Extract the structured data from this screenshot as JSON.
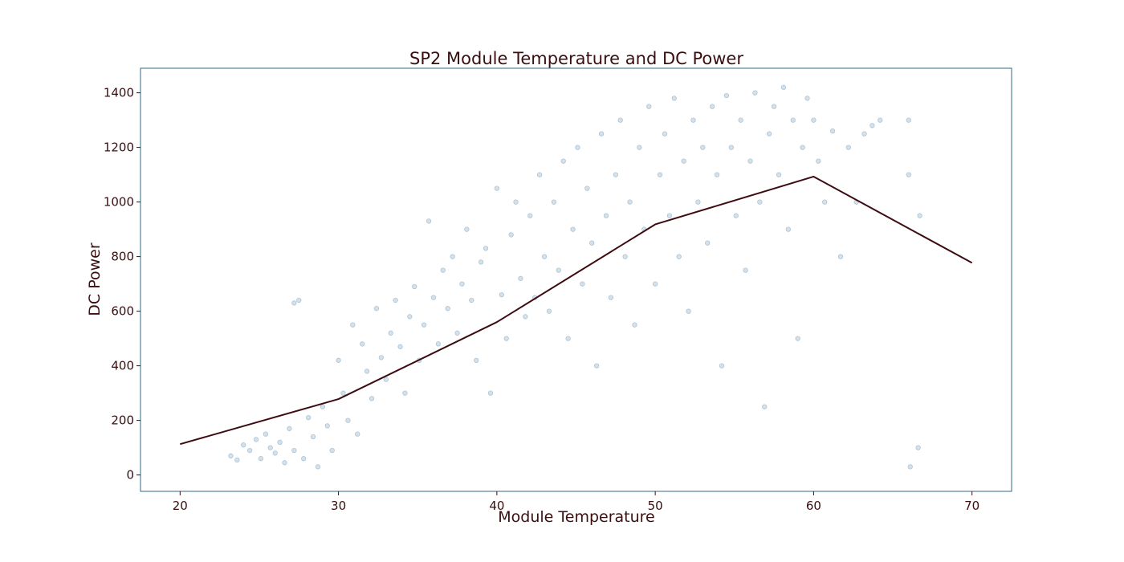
{
  "chart_data": {
    "type": "scatter",
    "title": "SP2 Module Temperature and DC Power",
    "xlabel": "Module Temperature",
    "ylabel": "DC Power",
    "xlim": [
      17.5,
      72.5
    ],
    "ylim": [
      -60,
      1490
    ],
    "xticks": [
      "20",
      "30",
      "40",
      "50",
      "60",
      "70"
    ],
    "yticks": [
      "0",
      "200",
      "400",
      "600",
      "800",
      "1000",
      "1200",
      "1400"
    ],
    "grid": false,
    "legend": "none",
    "colors": {
      "scatter": "#3a78a6",
      "trend": "#3d0c12",
      "frame": "#2f6a86",
      "text": "#3b0f10"
    },
    "series": [
      {
        "type": "scatter",
        "points": [
          [
            23.2,
            70
          ],
          [
            23.6,
            55
          ],
          [
            24.0,
            110
          ],
          [
            24.4,
            90
          ],
          [
            24.8,
            130
          ],
          [
            25.1,
            60
          ],
          [
            25.4,
            150
          ],
          [
            25.7,
            100
          ],
          [
            26.0,
            80
          ],
          [
            26.3,
            120
          ],
          [
            26.6,
            45
          ],
          [
            26.9,
            170
          ],
          [
            27.2,
            90
          ],
          [
            27.2,
            630
          ],
          [
            27.5,
            640
          ],
          [
            27.8,
            60
          ],
          [
            28.1,
            210
          ],
          [
            28.4,
            140
          ],
          [
            28.7,
            30
          ],
          [
            29.0,
            250
          ],
          [
            29.3,
            180
          ],
          [
            29.6,
            90
          ],
          [
            30.0,
            420
          ],
          [
            30.3,
            300
          ],
          [
            30.6,
            200
          ],
          [
            30.9,
            550
          ],
          [
            31.2,
            150
          ],
          [
            31.5,
            480
          ],
          [
            31.8,
            380
          ],
          [
            32.1,
            280
          ],
          [
            32.4,
            610
          ],
          [
            32.7,
            430
          ],
          [
            33.0,
            350
          ],
          [
            33.3,
            520
          ],
          [
            33.6,
            640
          ],
          [
            33.9,
            470
          ],
          [
            34.2,
            300
          ],
          [
            34.5,
            580
          ],
          [
            34.8,
            690
          ],
          [
            35.1,
            420
          ],
          [
            35.4,
            550
          ],
          [
            35.7,
            930
          ],
          [
            36.0,
            650
          ],
          [
            36.3,
            480
          ],
          [
            36.6,
            750
          ],
          [
            36.9,
            610
          ],
          [
            37.2,
            800
          ],
          [
            37.5,
            520
          ],
          [
            37.8,
            700
          ],
          [
            38.1,
            900
          ],
          [
            38.4,
            640
          ],
          [
            38.7,
            420
          ],
          [
            39.0,
            780
          ],
          [
            39.3,
            830
          ],
          [
            39.6,
            300
          ],
          [
            40.0,
            1050
          ],
          [
            40.3,
            660
          ],
          [
            40.6,
            500
          ],
          [
            40.9,
            880
          ],
          [
            41.2,
            1000
          ],
          [
            41.5,
            720
          ],
          [
            41.8,
            580
          ],
          [
            42.1,
            950
          ],
          [
            42.4,
            650
          ],
          [
            42.7,
            1100
          ],
          [
            43.0,
            800
          ],
          [
            43.3,
            600
          ],
          [
            43.6,
            1000
          ],
          [
            43.9,
            750
          ],
          [
            44.2,
            1150
          ],
          [
            44.5,
            500
          ],
          [
            44.8,
            900
          ],
          [
            45.1,
            1200
          ],
          [
            45.4,
            700
          ],
          [
            45.7,
            1050
          ],
          [
            46.0,
            850
          ],
          [
            46.3,
            400
          ],
          [
            46.6,
            1250
          ],
          [
            46.9,
            950
          ],
          [
            47.2,
            650
          ],
          [
            47.5,
            1100
          ],
          [
            47.8,
            1300
          ],
          [
            48.1,
            800
          ],
          [
            48.4,
            1000
          ],
          [
            48.7,
            550
          ],
          [
            49.0,
            1200
          ],
          [
            49.3,
            900
          ],
          [
            49.6,
            1350
          ],
          [
            50.0,
            700
          ],
          [
            50.3,
            1100
          ],
          [
            50.6,
            1250
          ],
          [
            50.9,
            950
          ],
          [
            51.2,
            1380
          ],
          [
            51.5,
            800
          ],
          [
            51.8,
            1150
          ],
          [
            52.1,
            600
          ],
          [
            52.4,
            1300
          ],
          [
            52.7,
            1000
          ],
          [
            53.0,
            1200
          ],
          [
            53.3,
            850
          ],
          [
            53.6,
            1350
          ],
          [
            53.9,
            1100
          ],
          [
            54.2,
            400
          ],
          [
            54.5,
            1390
          ],
          [
            54.8,
            1200
          ],
          [
            55.1,
            950
          ],
          [
            55.4,
            1300
          ],
          [
            55.7,
            750
          ],
          [
            56.0,
            1150
          ],
          [
            56.3,
            1400
          ],
          [
            56.6,
            1000
          ],
          [
            56.9,
            250
          ],
          [
            57.2,
            1250
          ],
          [
            57.5,
            1350
          ],
          [
            57.8,
            1100
          ],
          [
            58.1,
            1420
          ],
          [
            58.4,
            900
          ],
          [
            58.7,
            1300
          ],
          [
            59.0,
            500
          ],
          [
            59.3,
            1200
          ],
          [
            59.6,
            1380
          ],
          [
            60.0,
            1300
          ],
          [
            60.3,
            1150
          ],
          [
            60.7,
            1000
          ],
          [
            61.2,
            1260
          ],
          [
            61.7,
            800
          ],
          [
            62.2,
            1200
          ],
          [
            62.7,
            1000
          ],
          [
            63.2,
            1250
          ],
          [
            63.7,
            1280
          ],
          [
            64.2,
            1300
          ],
          [
            66.0,
            1300
          ],
          [
            66.0,
            1100
          ],
          [
            66.1,
            30
          ],
          [
            66.6,
            100
          ],
          [
            66.7,
            950
          ]
        ]
      },
      {
        "type": "line",
        "points": [
          [
            20,
            113
          ],
          [
            30,
            278
          ],
          [
            40,
            560
          ],
          [
            50,
            918
          ],
          [
            60,
            1093
          ],
          [
            70,
            777
          ]
        ]
      }
    ]
  }
}
